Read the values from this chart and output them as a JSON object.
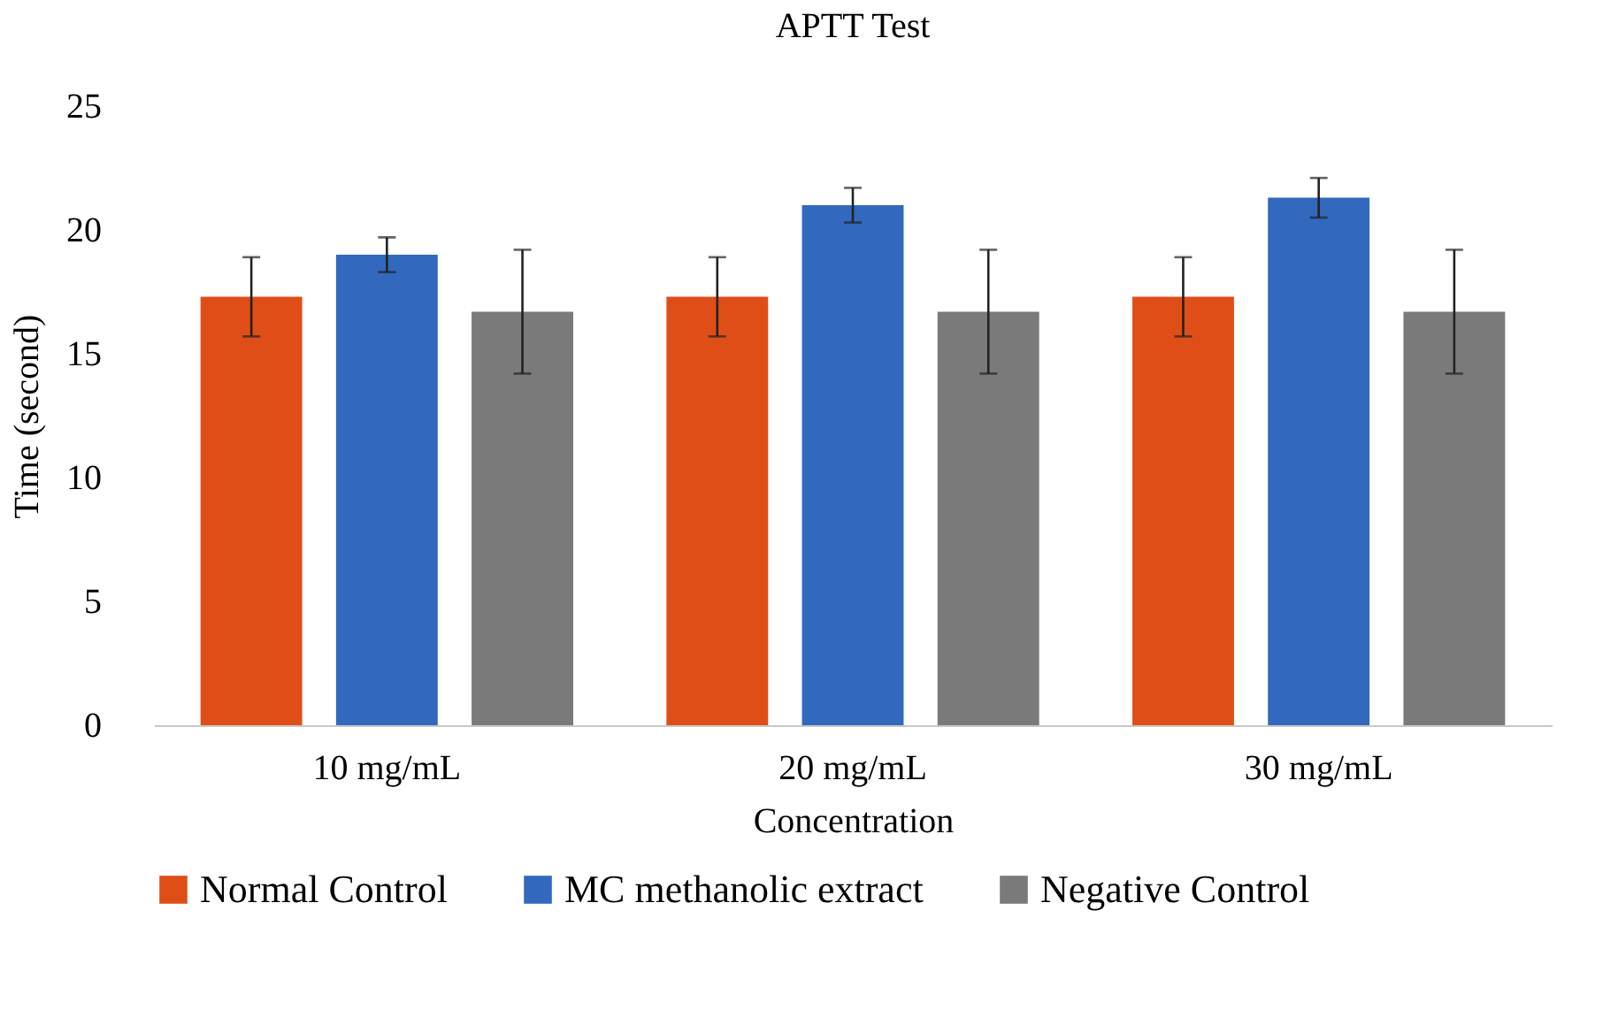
{
  "chart_data": {
    "type": "bar",
    "title": "APTT Test",
    "xlabel": "Concentration",
    "ylabel": "Time  (second)",
    "categories": [
      "10 mg/mL",
      "20 mg/mL",
      "30 mg/mL"
    ],
    "series": [
      {
        "name": "Normal Control",
        "color": "#e04e18",
        "values": [
          17.3,
          17.3,
          17.3
        ],
        "errors": [
          1.6,
          1.6,
          1.6
        ]
      },
      {
        "name": "MC methanolic extract",
        "color": "#3269be",
        "values": [
          19.0,
          21.0,
          21.3
        ],
        "errors": [
          0.7,
          0.7,
          0.8
        ]
      },
      {
        "name": "Negative Control",
        "color": "#7a7a7a",
        "values": [
          16.7,
          16.7,
          16.7
        ],
        "errors": [
          2.5,
          2.5,
          2.5
        ]
      }
    ],
    "ylim": [
      0,
      25
    ],
    "yticks": [
      0,
      5,
      10,
      15,
      20,
      25
    ],
    "grid": false,
    "legend": "bottom"
  }
}
